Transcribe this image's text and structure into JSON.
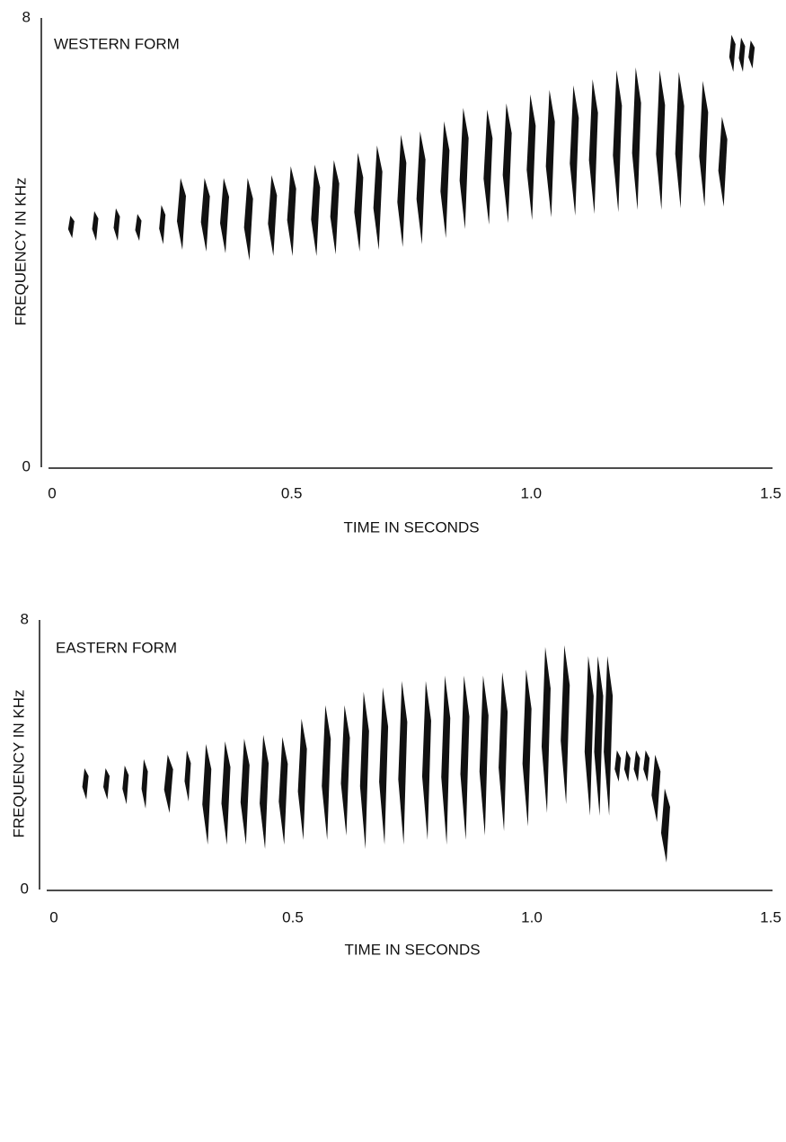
{
  "chart_data": [
    {
      "type": "spectrogram",
      "title": "WESTERN FORM",
      "x_label": "TIME IN SECONDS",
      "y_label": "FREQUENCY IN KHz",
      "color": "#111111",
      "xlim": [
        0,
        1.5
      ],
      "xticks": [
        0,
        0.5,
        {
          "value": 1,
          "label": "1.0"
        },
        1.5
      ],
      "ylim": [
        0,
        8
      ],
      "yticks": [
        0,
        8
      ],
      "x": [
        0.04,
        0.09,
        0.135,
        0.18,
        0.23,
        0.27,
        0.32,
        0.36,
        0.41,
        0.46,
        0.5,
        0.55,
        0.59,
        0.64,
        0.68,
        0.73,
        0.77,
        0.82,
        0.86,
        0.91,
        0.95,
        1.0,
        1.04,
        1.09,
        1.13,
        1.18,
        1.22,
        1.27,
        1.31,
        1.36,
        1.4,
        1.42,
        1.44,
        1.46
      ],
      "low": [
        4.08,
        4.03,
        4.03,
        4.03,
        3.97,
        3.87,
        3.84,
        3.81,
        3.68,
        3.76,
        3.76,
        3.76,
        3.79,
        3.84,
        3.87,
        3.92,
        3.97,
        4.08,
        4.24,
        4.32,
        4.35,
        4.4,
        4.45,
        4.48,
        4.51,
        4.54,
        4.58,
        4.58,
        4.61,
        4.64,
        4.64,
        7.04,
        7.04,
        7.1
      ],
      "high": [
        4.48,
        4.56,
        4.61,
        4.51,
        4.67,
        5.15,
        5.15,
        5.15,
        5.15,
        5.2,
        5.36,
        5.39,
        5.47,
        5.6,
        5.73,
        5.92,
        5.98,
        6.16,
        6.4,
        6.37,
        6.48,
        6.64,
        6.72,
        6.8,
        6.91,
        7.07,
        7.12,
        7.07,
        7.04,
        6.88,
        6.24,
        7.7,
        7.65,
        7.6
      ]
    },
    {
      "type": "spectrogram",
      "title": "EASTERN FORM",
      "x_label": "TIME IN SECONDS",
      "y_label": "FREQUENCY IN KHz",
      "color": "#111111",
      "xlim": [
        0,
        1.5
      ],
      "xticks": [
        0,
        0.5,
        {
          "value": 1,
          "label": "1.0"
        },
        1.5
      ],
      "ylim": [
        0,
        8
      ],
      "yticks": [
        0,
        8
      ],
      "x": [
        0.066,
        0.11,
        0.15,
        0.19,
        0.24,
        0.28,
        0.32,
        0.36,
        0.4,
        0.44,
        0.48,
        0.52,
        0.57,
        0.61,
        0.65,
        0.69,
        0.73,
        0.78,
        0.82,
        0.86,
        0.9,
        0.94,
        0.99,
        1.03,
        1.07,
        1.12,
        1.14,
        1.16,
        1.18,
        1.2,
        1.22,
        1.24,
        1.26,
        1.28
      ],
      "low": [
        2.67,
        2.67,
        2.53,
        2.4,
        2.27,
        2.61,
        1.33,
        1.33,
        1.33,
        1.2,
        1.33,
        1.47,
        1.47,
        1.6,
        1.2,
        1.33,
        1.33,
        1.47,
        1.33,
        1.47,
        1.6,
        1.73,
        1.87,
        2.27,
        2.53,
        2.19,
        2.19,
        2.19,
        3.2,
        3.2,
        3.2,
        3.2,
        2.0,
        0.8
      ],
      "high": [
        3.6,
        3.6,
        3.68,
        3.87,
        4.0,
        4.13,
        4.32,
        4.4,
        4.48,
        4.59,
        4.53,
        5.07,
        5.47,
        5.47,
        5.87,
        6.0,
        6.19,
        6.19,
        6.35,
        6.35,
        6.35,
        6.45,
        6.53,
        7.2,
        7.25,
        6.93,
        6.93,
        6.93,
        4.13,
        4.13,
        4.13,
        4.13,
        4.0,
        3.0
      ]
    }
  ]
}
